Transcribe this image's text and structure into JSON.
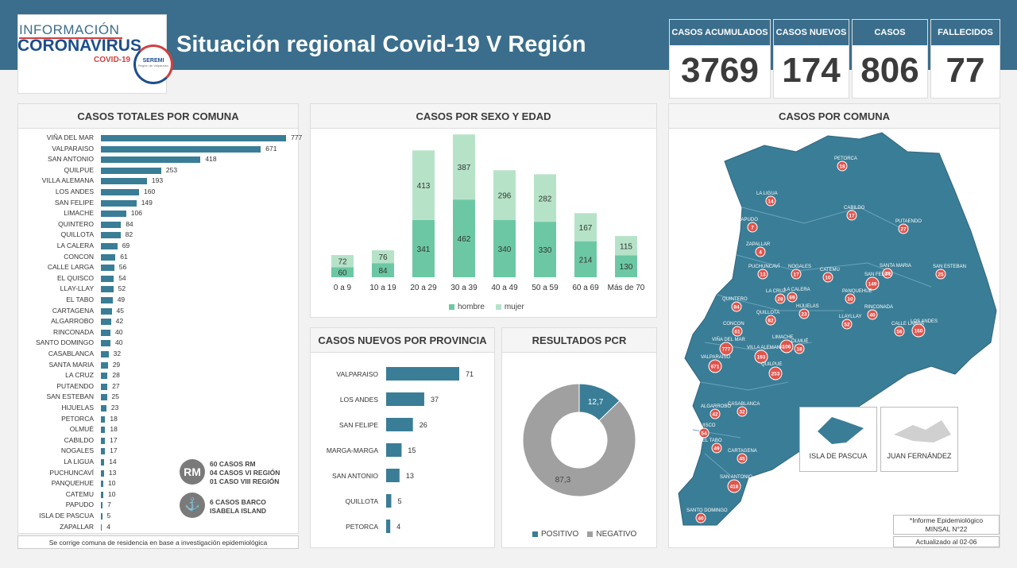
{
  "header": {
    "logo_line1": "INFORMACIÓN",
    "logo_line2": "CORONAVIRUS",
    "logo_line3": "COVID-19",
    "seremi_label": "SEREMI",
    "seremi_sub": "Región de Valparaíso",
    "title": "Situación regional Covid-19 V Región"
  },
  "kpis": [
    {
      "label": "CASOS ACUMULADOS",
      "value": "3769"
    },
    {
      "label": "CASOS NUEVOS",
      "value": "174"
    },
    {
      "label": "CASOS ACTIVOS*",
      "value": "806"
    },
    {
      "label": "FALLECIDOS",
      "value": "77"
    }
  ],
  "colors": {
    "primary": "#3a6e8c",
    "bar": "#3a7d96",
    "hombre": "#6cc8a4",
    "mujer": "#b6e3c8",
    "positivo": "#3a7d96",
    "negativo": "#a0a0a0",
    "marker": "#e0554d"
  },
  "panels": {
    "comuna_title": "CASOS TOTALES POR COMUNA",
    "age_title": "CASOS POR SEXO Y EDAD",
    "prov_title": "CASOS NUEVOS  POR PROVINCIA",
    "pcr_title": "RESULTADOS PCR",
    "map_title": "CASOS POR COMUNA"
  },
  "footnote": "Se corrige comuna de residencia en base a investigación epidemiológica",
  "legend_rm": {
    "icon": "RM",
    "lines": [
      "60 CASOS RM",
      "04 CASOS VI REGIÓN",
      "01 CASO VIII REGIÓN"
    ]
  },
  "legend_ship": {
    "lines": [
      "6 CASOS BARCO",
      "ISABELA ISLAND"
    ]
  },
  "map_notes": {
    "informe_line1": "*Informe Epidemiológico",
    "informe_line2": "MINSAL N°22",
    "updated": "Actualizado al 02-06",
    "isla_pascua": "ISLA DE PASCUA",
    "juan_fernandez": "JUAN FERNÁNDEZ"
  },
  "chart_data": [
    {
      "type": "bar",
      "orientation": "horizontal",
      "title": "CASOS TOTALES POR COMUNA",
      "categories": [
        "VIÑA DEL MAR",
        "VALPARAISO",
        "SAN ANTONIO",
        "QUILPUE",
        "VILLA ALEMANA",
        "LOS ANDES",
        "SAN FELIPE",
        "LIMACHE",
        "QUINTERO",
        "QUILLOTA",
        "LA CALERA",
        "CONCON",
        "CALLE LARGA",
        "EL QUISCO",
        "LLAY-LLAY",
        "EL TABO",
        "CARTAGENA",
        "ALGARROBO",
        "RINCONADA",
        "SANTO DOMINGO",
        "CASABLANCA",
        "SANTA MARIA",
        "LA CRUZ",
        "PUTAENDO",
        "SAN ESTEBAN",
        "HIJUELAS",
        "PETORCA",
        "OLMUÉ",
        "CABILDO",
        "NOGALES",
        "LA LIGUA",
        "PUCHUNCAVÍ",
        "PANQUEHUE",
        "CATEMU",
        "PAPUDO",
        "ISLA DE PASCUA",
        "ZAPALLAR"
      ],
      "values": [
        777,
        671,
        418,
        253,
        193,
        160,
        149,
        106,
        84,
        82,
        69,
        61,
        56,
        54,
        52,
        49,
        45,
        42,
        40,
        40,
        32,
        29,
        28,
        27,
        25,
        23,
        18,
        18,
        17,
        17,
        14,
        13,
        10,
        10,
        7,
        5,
        4
      ]
    },
    {
      "type": "bar",
      "stacked": true,
      "title": "CASOS POR SEXO Y EDAD",
      "categories": [
        "0 a 9",
        "10 a 19",
        "20 a 29",
        "30 a 39",
        "40 a 49",
        "50 a 59",
        "60 a 69",
        "Más de 70"
      ],
      "series": [
        {
          "name": "hombre",
          "values": [
            60,
            84,
            341,
            462,
            340,
            330,
            214,
            130
          ]
        },
        {
          "name": "mujer",
          "values": [
            72,
            76,
            413,
            387,
            296,
            282,
            167,
            115
          ]
        }
      ],
      "legend": "bottom"
    },
    {
      "type": "bar",
      "orientation": "horizontal",
      "title": "CASOS NUEVOS  POR PROVINCIA",
      "categories": [
        "VALPARAISO",
        "LOS ANDES",
        "SAN FELIPE",
        "MARGA-MARGA",
        "SAN ANTONIO",
        "QUILLOTA",
        "PETORCA"
      ],
      "values": [
        71,
        37,
        26,
        15,
        13,
        5,
        4
      ]
    },
    {
      "type": "pie",
      "donut": true,
      "title": "RESULTADOS PCR",
      "labels": [
        "POSITIVO",
        "NEGATIVO"
      ],
      "values": [
        12.7,
        87.3
      ],
      "value_labels": [
        "12,7",
        "87,3"
      ],
      "legend": "bottom"
    }
  ],
  "map_markers": [
    {
      "name": "PETORCA",
      "value": "18"
    },
    {
      "name": "LA LIGUA",
      "value": "14"
    },
    {
      "name": "CABILDO",
      "value": "17"
    },
    {
      "name": "PUTAENDO",
      "value": "27"
    },
    {
      "name": "PAPUDO",
      "value": "7"
    },
    {
      "name": "ZAPALLAR",
      "value": "4"
    },
    {
      "name": "NOGALES",
      "value": "17"
    },
    {
      "name": "SANTA MARIA",
      "value": "29"
    },
    {
      "name": "SAN ESTEBAN",
      "value": "25"
    },
    {
      "name": "PUCHUNCAVÍ",
      "value": "13"
    },
    {
      "name": "LA CALERA",
      "value": "69"
    },
    {
      "name": "CATEMU",
      "value": "10"
    },
    {
      "name": "SAN FELIPE",
      "value": "149"
    },
    {
      "name": "PANQUEHUE",
      "value": "10"
    },
    {
      "name": "QUINTERO",
      "value": "84"
    },
    {
      "name": "LA CRUZ",
      "value": "28"
    },
    {
      "name": "RINCONADA",
      "value": "40"
    },
    {
      "name": "HIJUELAS",
      "value": "23"
    },
    {
      "name": "LLAYLLAY",
      "value": "52"
    },
    {
      "name": "QUILLOTA",
      "value": "82"
    },
    {
      "name": "CALLE LARGA",
      "value": "56"
    },
    {
      "name": "LOS ANDES",
      "value": "160"
    },
    {
      "name": "CONCON",
      "value": "61"
    },
    {
      "name": "LIMACHE",
      "value": "106"
    },
    {
      "name": "OLMUÉ",
      "value": "18"
    },
    {
      "name": "VIÑA DEL MAR",
      "value": "777"
    },
    {
      "name": "VILLA ALEMANA",
      "value": "193"
    },
    {
      "name": "VALPARAISO",
      "value": "671"
    },
    {
      "name": "QUILPUE",
      "value": "253"
    },
    {
      "name": "ALGARROBO",
      "value": "42"
    },
    {
      "name": "CASABLANCA",
      "value": "32"
    },
    {
      "name": "EL QUISCO",
      "value": "54"
    },
    {
      "name": "EL TABO",
      "value": "49"
    },
    {
      "name": "CARTAGENA",
      "value": "45"
    },
    {
      "name": "SAN ANTONIO",
      "value": "418"
    },
    {
      "name": "SANTO DOMINGO",
      "value": "40"
    },
    {
      "name": "ISLA DE PASCUA",
      "value": "5"
    }
  ]
}
